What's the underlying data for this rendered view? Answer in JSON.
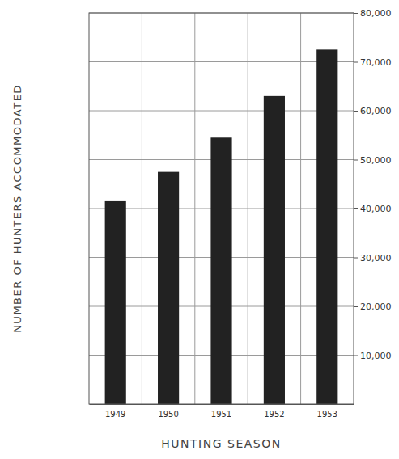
{
  "chart_data": {
    "type": "bar",
    "x_label": "HUNTING SEASON",
    "y_label": "NUMBER OF HUNTERS ACCOMMODATED",
    "categories": [
      "1949",
      "1950",
      "1951",
      "1952",
      "1953"
    ],
    "values": [
      41500,
      47500,
      54500,
      63000,
      72500
    ],
    "color": "#222222",
    "ylim": [
      0,
      80000
    ],
    "yticks": [
      {
        "value": 10000,
        "label": "10,000"
      },
      {
        "value": 20000,
        "label": "20,000"
      },
      {
        "value": 30000,
        "label": "30,000"
      },
      {
        "value": 40000,
        "label": "40,000"
      },
      {
        "value": 50000,
        "label": "50,000"
      },
      {
        "value": 60000,
        "label": "60,000"
      },
      {
        "value": 70000,
        "label": "70,000"
      },
      {
        "value": 80000,
        "label": "80,000"
      }
    ],
    "grid": true
  }
}
